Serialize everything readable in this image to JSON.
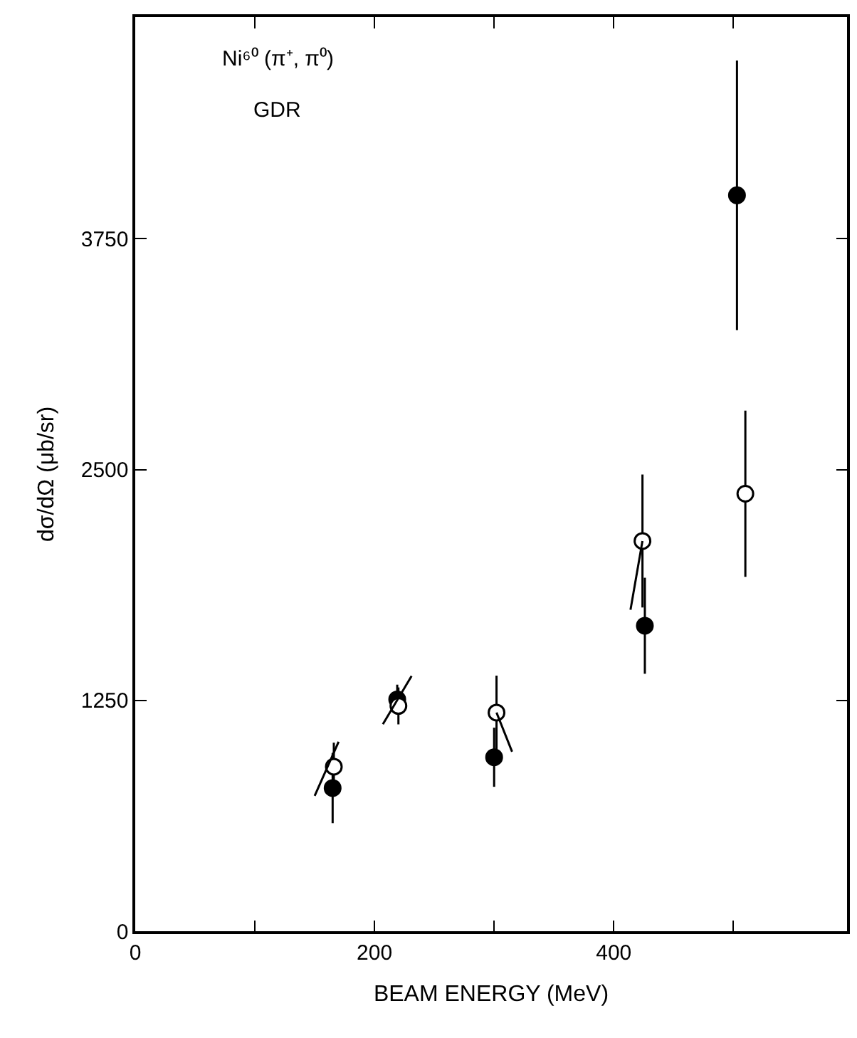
{
  "chart_data": {
    "type": "scatter",
    "xlabel": "BEAM ENERGY (MeV)",
    "ylabel": "dσ/dΩ (μb/sr)",
    "annotations": [
      "Ni⁶⁰ (π⁺, π⁰)",
      "GDR"
    ],
    "xlim": [
      0,
      595
    ],
    "ylim": [
      0,
      4950
    ],
    "xticks": [
      0,
      {
        "value": 100,
        "label": null
      },
      200,
      {
        "value": 300,
        "label": null
      },
      400,
      {
        "value": 500,
        "label": null
      }
    ],
    "yticks": [
      0,
      1250,
      2500,
      3750
    ],
    "marker": "circle",
    "series": [
      {
        "color": "#000000",
        "x": [
          165,
          219,
          300,
          426,
          503
        ],
        "values": [
          775,
          1255,
          942,
          1654,
          3985
        ],
        "errors": [
          190,
          80,
          160,
          260,
          730
        ]
      },
      {
        "color": "#ffffff",
        "x": [
          166,
          220,
          302,
          424,
          510
        ],
        "values": [
          891,
          1220,
          1184,
          2113,
          2369
        ],
        "errors": [
          130,
          100,
          200,
          360,
          450
        ]
      },
      {
        "type": "line",
        "marker": "none",
        "color": "#000000",
        "x": [
          150,
          170
        ],
        "values": [
          733,
          1026
        ]
      },
      {
        "type": "line",
        "marker": "none",
        "color": "#000000",
        "x": [
          207,
          231
        ],
        "values": [
          1121,
          1382
        ]
      },
      {
        "type": "line",
        "marker": "none",
        "color": "#000000",
        "x": [
          302,
          315
        ],
        "values": [
          1184,
          972
        ]
      },
      {
        "type": "line",
        "marker": "none",
        "color": "#000000",
        "x": [
          424,
          414
        ],
        "values": [
          2113,
          1741
        ]
      }
    ]
  }
}
